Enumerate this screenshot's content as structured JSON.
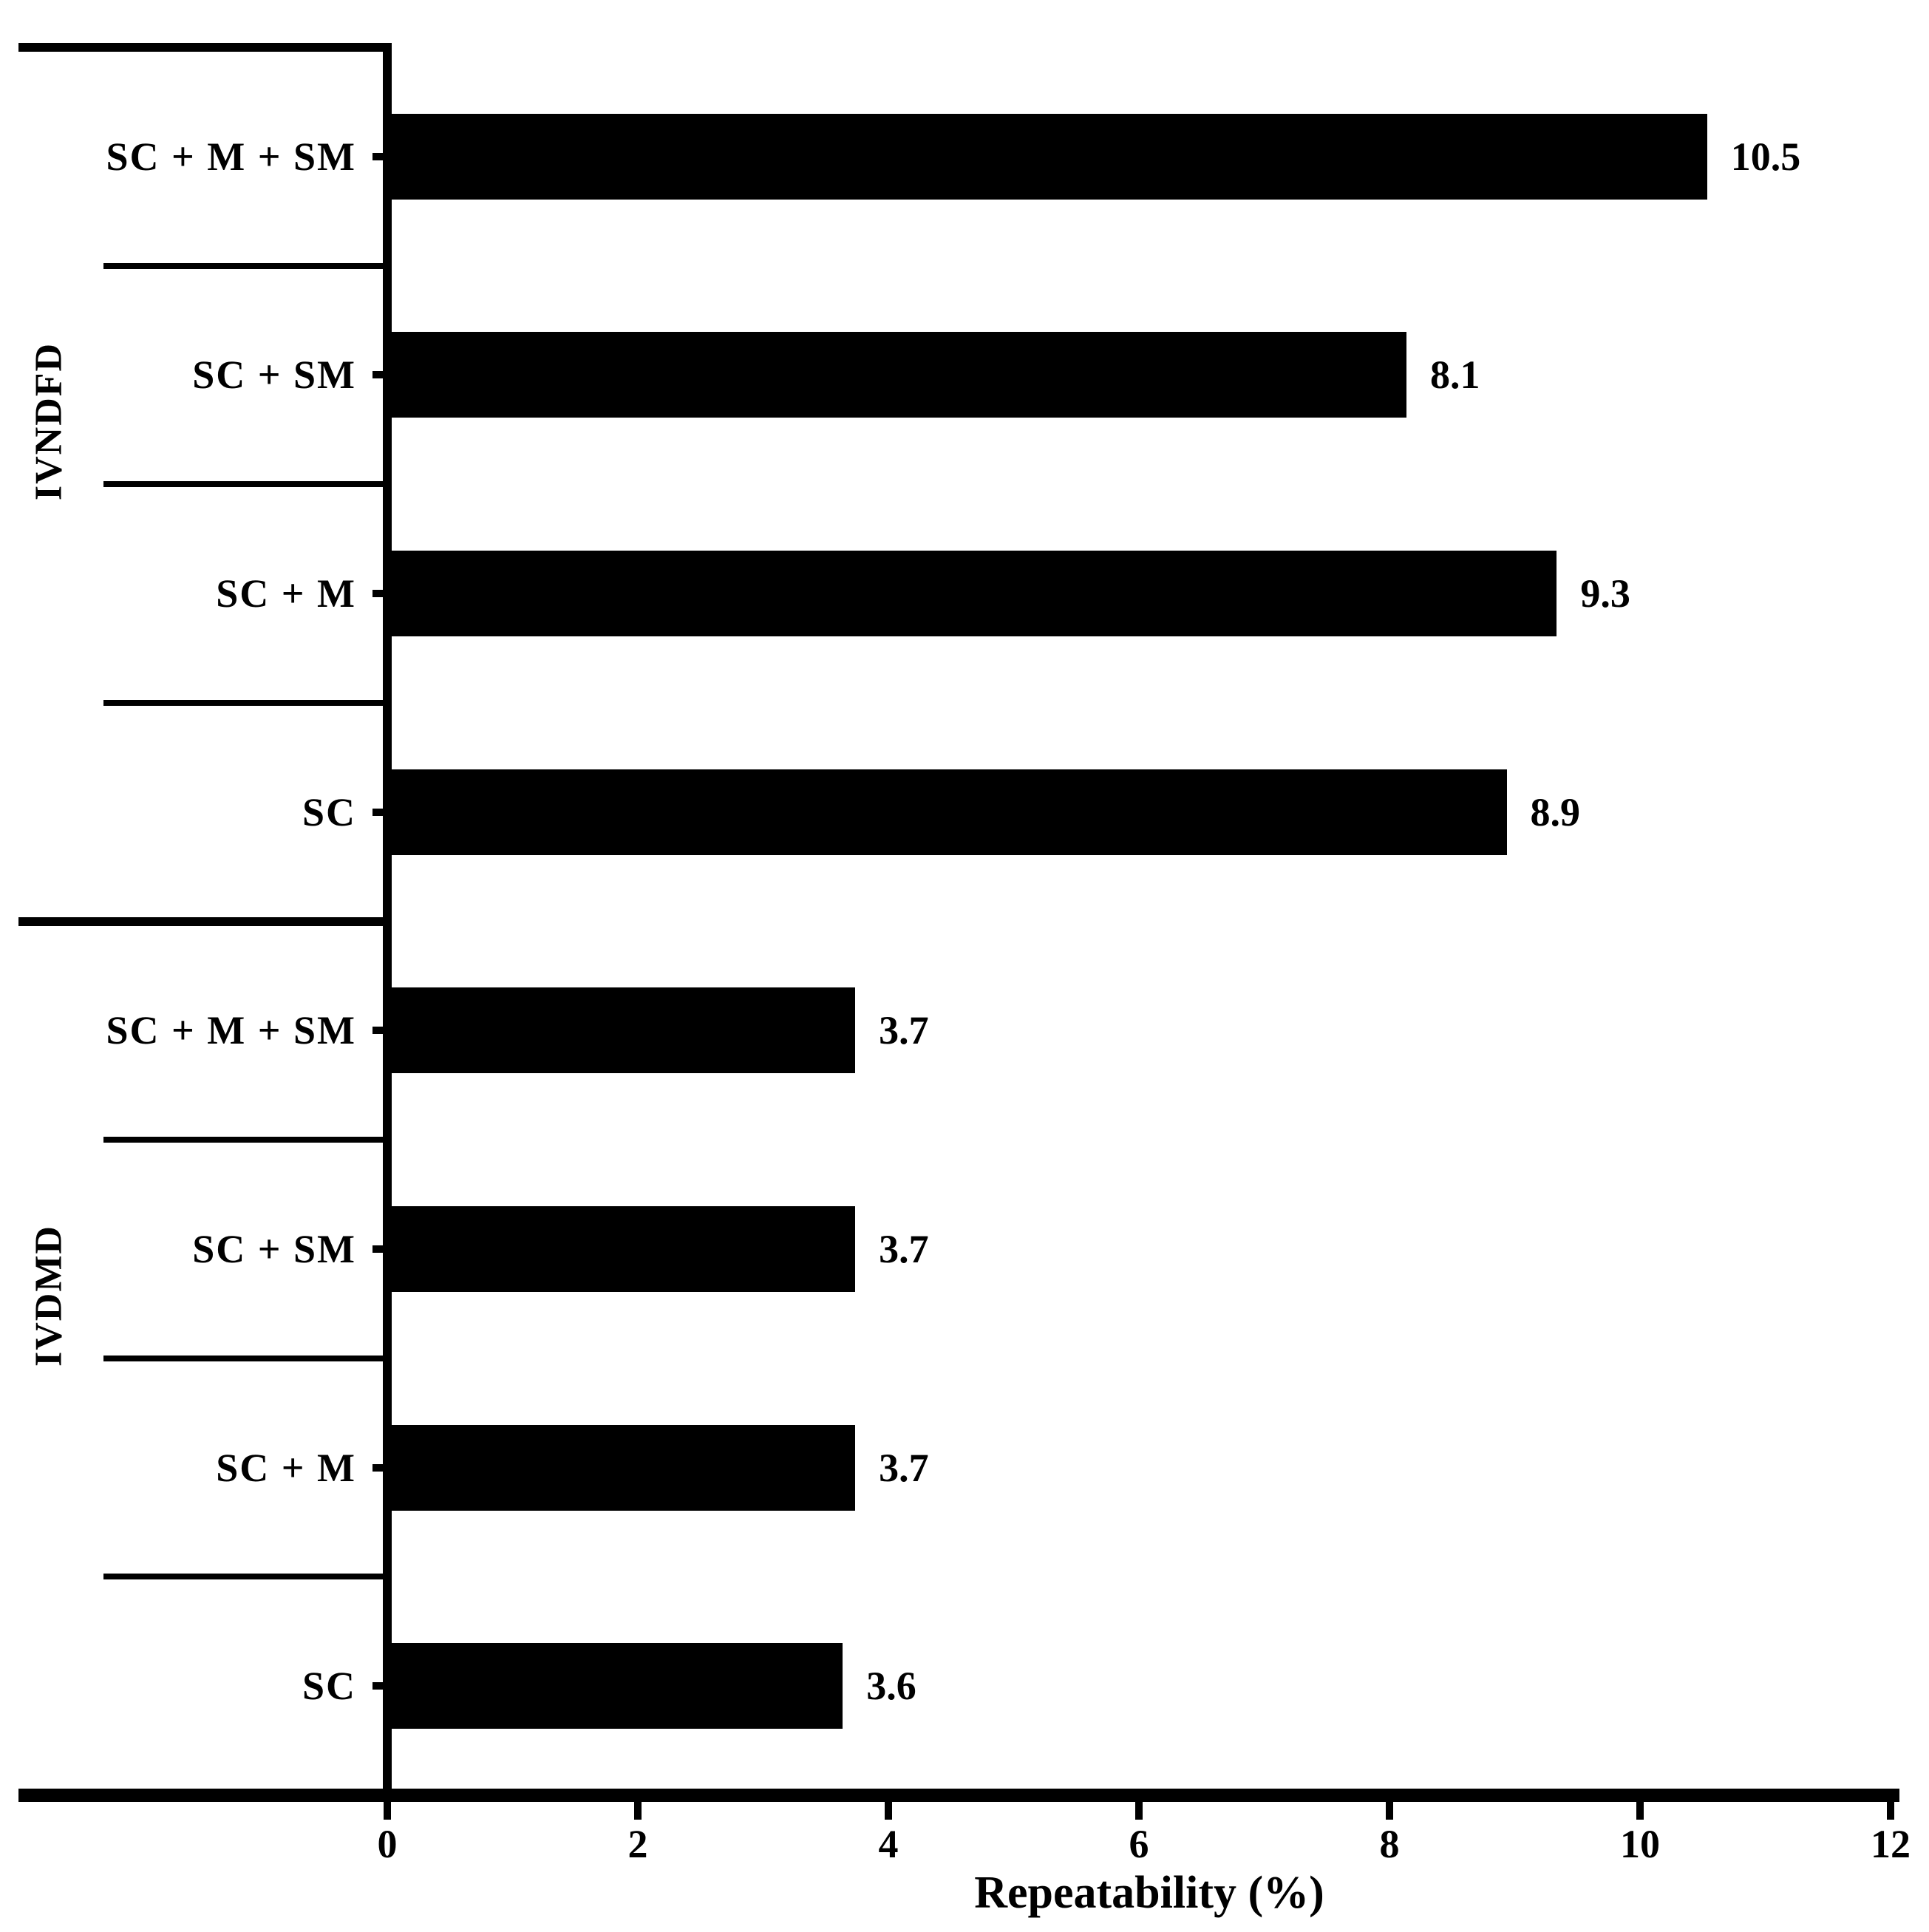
{
  "figure": {
    "background_color": "#ffffff",
    "bar_color": "#000000",
    "axis_color": "#000000",
    "text_color": "#000000"
  },
  "chart_data": {
    "type": "bar",
    "orientation": "horizontal",
    "title": "",
    "xlabel": "Repeatability (%)",
    "ylabel": "",
    "xlim": [
      0,
      12
    ],
    "x_ticks": [
      "0",
      "2",
      "4",
      "6",
      "8",
      "10",
      "12"
    ],
    "grid": false,
    "legend": false,
    "bar_color": "#000000",
    "groups": [
      {
        "name": "IVNDFD",
        "bars": [
          {
            "label": "SC + M + SM",
            "value": 10.5,
            "value_label": "10.5"
          },
          {
            "label": "SC + SM",
            "value": 8.1,
            "value_label": "8.1"
          },
          {
            "label": "SC + M",
            "value": 9.3,
            "value_label": "9.3"
          },
          {
            "label": "SC",
            "value": 8.9,
            "value_label": "8.9"
          }
        ]
      },
      {
        "name": "IVDMD",
        "bars": [
          {
            "label": "SC + M + SM",
            "value": 3.7,
            "value_label": "3.7"
          },
          {
            "label": "SC + SM",
            "value": 3.7,
            "value_label": "3.7"
          },
          {
            "label": "SC + M",
            "value": 3.7,
            "value_label": "3.7"
          },
          {
            "label": "SC",
            "value": 3.6,
            "value_label": "3.6"
          }
        ]
      }
    ]
  }
}
